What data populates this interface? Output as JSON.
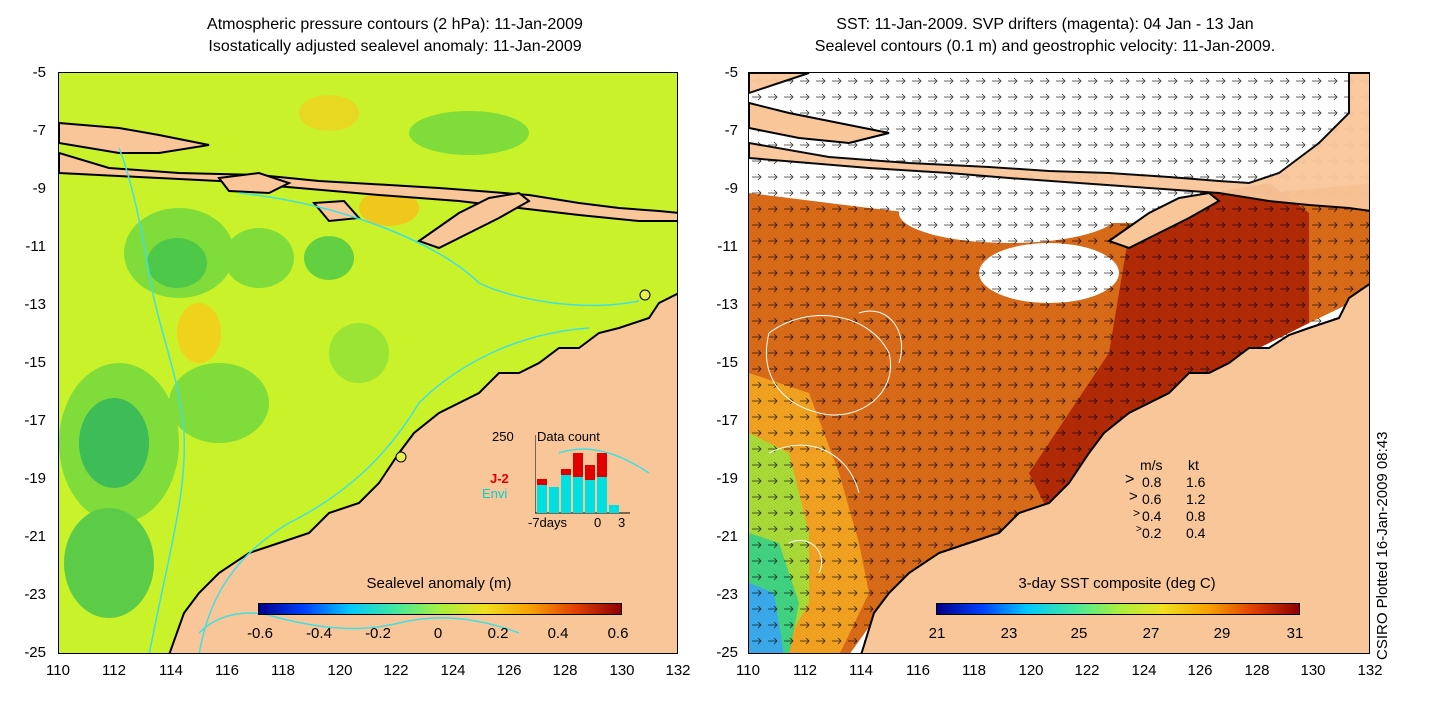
{
  "left_panel": {
    "title_line1": "Atmospheric pressure contours (2 hPa): 11-Jan-2009",
    "title_line2": "Isostatically adjusted sealevel anomaly: 11-Jan-2009",
    "colorbar_label": "Sealevel anomaly (m)",
    "colorbar_ticks": [
      "-0.6",
      "-0.4",
      "-0.2",
      "0",
      "0.2",
      "0.4",
      "0.6"
    ],
    "inset": {
      "max_label": "250",
      "title": "Data count",
      "series": [
        {
          "name": "J-2",
          "color": "#e00000"
        },
        {
          "name": "Envi",
          "color": "#00e0e0"
        }
      ],
      "x_left": "-7days",
      "x_zero": "0",
      "x_right": "3"
    }
  },
  "right_panel": {
    "title_line1": "SST: 11-Jan-2009. SVP drifters (magenta): 04 Jan - 13 Jan",
    "title_line2": "Sealevel contours (0.1 m) and geostrophic velocity: 11-Jan-2009.",
    "colorbar_label": "3-day SST composite (deg C)",
    "colorbar_ticks": [
      "21",
      "23",
      "25",
      "27",
      "29",
      "31"
    ],
    "velocity_legend": {
      "header_ms": "m/s",
      "header_kt": "kt",
      "rows": [
        {
          "ms": "0.8",
          "kt": "1.6"
        },
        {
          "ms": "0.6",
          "kt": "1.2"
        },
        {
          "ms": "0.4",
          "kt": "0.8"
        },
        {
          "ms": "0.2",
          "kt": "0.4"
        }
      ]
    }
  },
  "axes": {
    "y_ticks": [
      "-5",
      "-7",
      "-9",
      "-11",
      "-13",
      "-15",
      "-17",
      "-19",
      "-21",
      "-23",
      "-25"
    ],
    "x_ticks": [
      "110",
      "112",
      "114",
      "116",
      "118",
      "120",
      "122",
      "124",
      "126",
      "128",
      "130",
      "132"
    ]
  },
  "credit": "CSIRO Plotted 16-Jan-2009 08:43",
  "colors": {
    "land": "#f9c69a",
    "contour": "#40e0e0"
  }
}
